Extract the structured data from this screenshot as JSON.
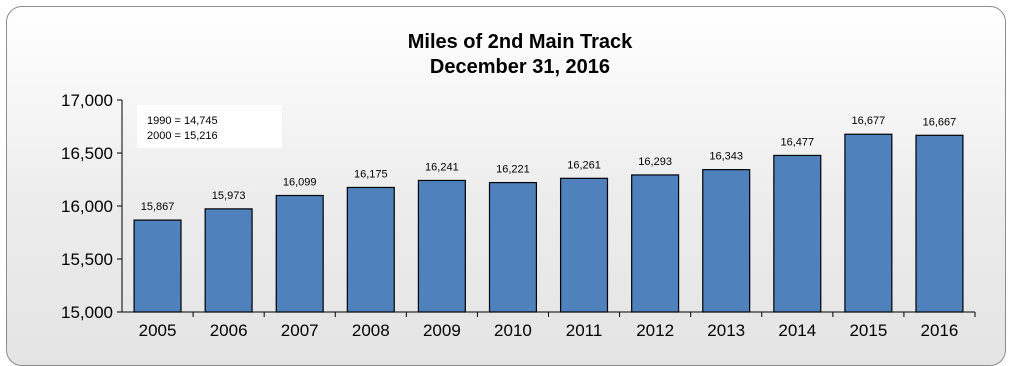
{
  "chart_data": {
    "type": "bar",
    "title": "Miles of 2nd Main Track",
    "subtitle": "December 31, 2016",
    "categories": [
      "2005",
      "2006",
      "2007",
      "2008",
      "2009",
      "2010",
      "2011",
      "2012",
      "2013",
      "2014",
      "2015",
      "2016"
    ],
    "values": [
      15867,
      15973,
      16099,
      16175,
      16241,
      16221,
      16261,
      16293,
      16343,
      16477,
      16677,
      16667
    ],
    "data_labels": [
      "15,867",
      "15,973",
      "16,099",
      "16,175",
      "16,241",
      "16,221",
      "16,261",
      "16,293",
      "16,343",
      "16,477",
      "16,677",
      "16,667"
    ],
    "ylim": [
      15000,
      17000
    ],
    "yticks": [
      15000,
      15500,
      16000,
      16500,
      17000
    ],
    "ytick_labels": [
      "15,000",
      "15,500",
      "16,000",
      "16,500",
      "17,000"
    ],
    "xlabel": "",
    "ylabel": "",
    "grid": false,
    "bar_color": "#4f81bd",
    "annotation": {
      "lines": [
        "1990 = 14,745",
        "2000 = 15,216"
      ],
      "placement": "top-left"
    }
  }
}
